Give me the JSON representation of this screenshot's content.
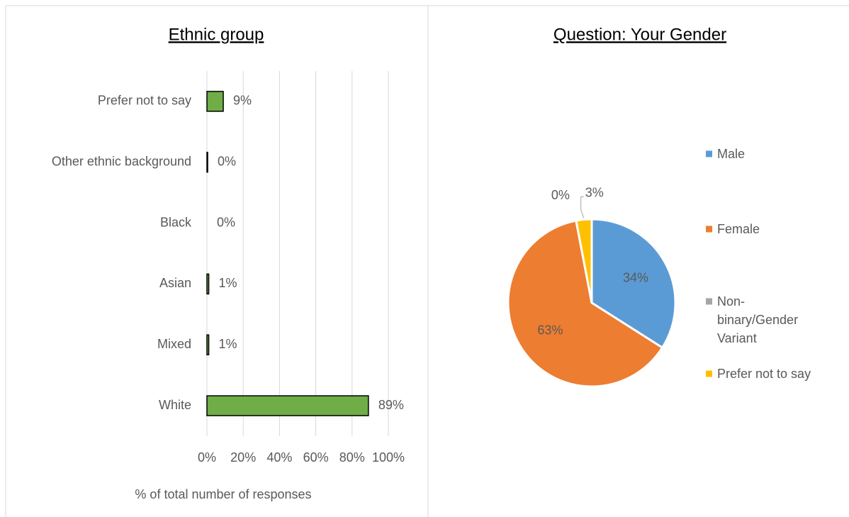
{
  "chart_data": [
    {
      "type": "hbar",
      "title": "Ethnic group",
      "x_label": "% of total number of responses",
      "categories": [
        "Prefer not to say",
        "Other ethnic background",
        "Black",
        "Asian",
        "Mixed",
        "White"
      ],
      "values": [
        9,
        0.4,
        0,
        1,
        1,
        89
      ],
      "value_labels": [
        "9%",
        "0%",
        "0%",
        "1%",
        "1%",
        "89%"
      ],
      "color": "#70ad47",
      "xlim": [
        0,
        100
      ],
      "xticks": [
        {
          "value": 0,
          "label": "0%"
        },
        {
          "value": 20,
          "label": "20%"
        },
        {
          "value": 40,
          "label": "40%"
        },
        {
          "value": 60,
          "label": "60%"
        },
        {
          "value": 80,
          "label": "80%"
        },
        {
          "value": 100,
          "label": "100%"
        }
      ],
      "grid": true
    },
    {
      "type": "pie",
      "title": "Question: Your Gender",
      "categories": [
        "Male",
        "Female",
        "Non-binary/Gender Variant",
        "Prefer not to say"
      ],
      "values": [
        34,
        63,
        0,
        3
      ],
      "value_labels": [
        "34%",
        "63%",
        "0%",
        "3%"
      ],
      "colors": [
        "#5b9bd5",
        "#ed7d31",
        "#a5a5a5",
        "#ffc000"
      ],
      "legend": "right"
    }
  ]
}
